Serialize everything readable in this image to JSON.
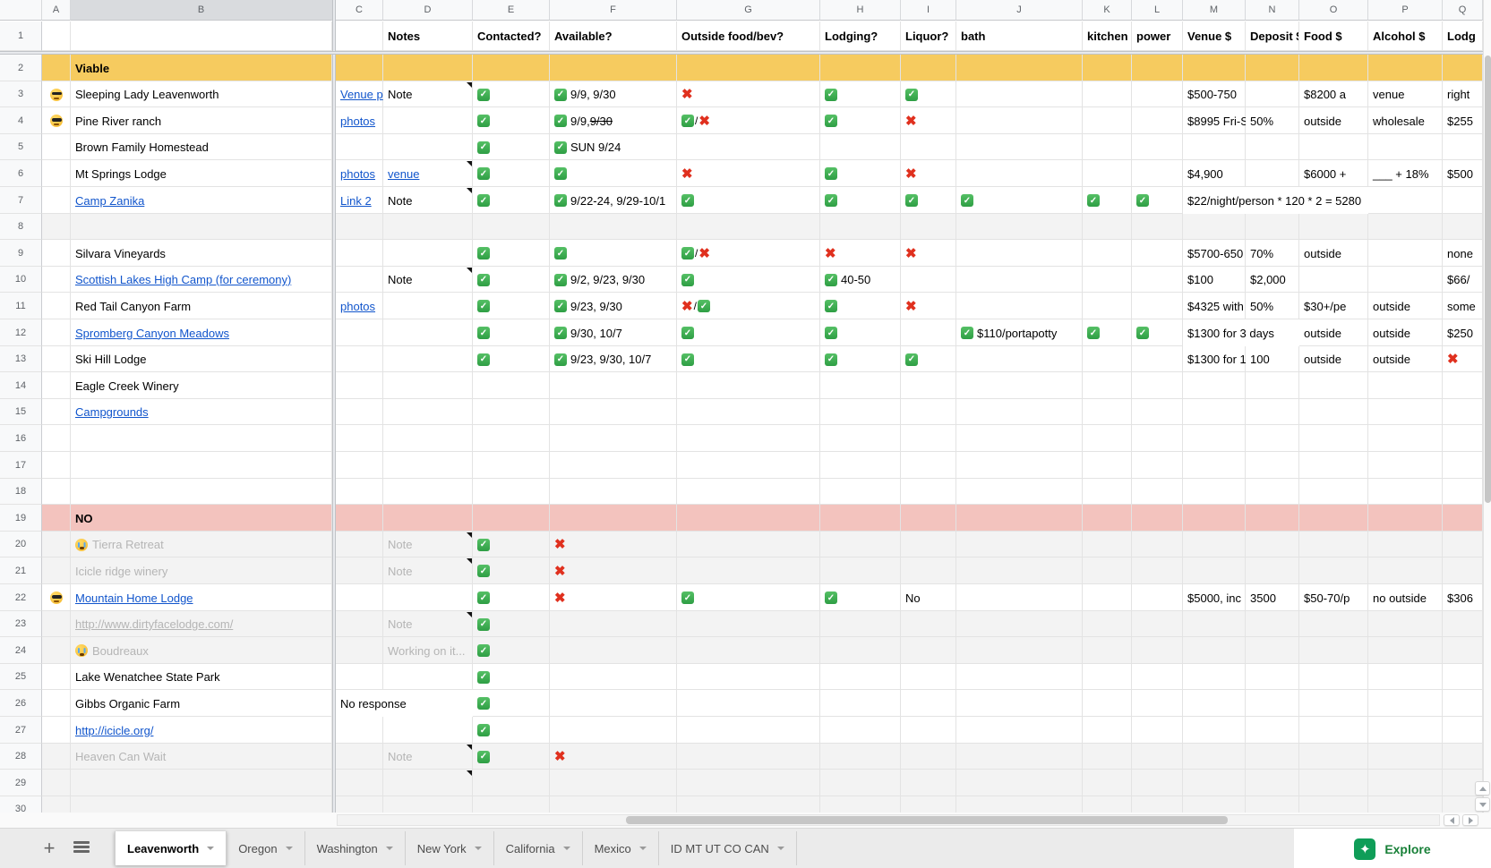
{
  "sheet": {
    "column_letters": [
      "A",
      "B",
      "C",
      "D",
      "E",
      "F",
      "G",
      "H",
      "I",
      "J",
      "K",
      "L",
      "M",
      "N",
      "O",
      "P",
      "Q"
    ],
    "active_column": "B",
    "header_row": {
      "D": "Notes",
      "E": "Contacted?",
      "F": "Available?",
      "G": "Outside food/bev?",
      "H": "Lodging?",
      "I": "Liquor?",
      "J": "bath",
      "K": "kitchen",
      "L": "power",
      "M": "Venue $",
      "N": "Deposit $",
      "O": "Food $",
      "P": "Alcohol $",
      "Q": "Lodg"
    },
    "colors": {
      "viable_band": "#F6CB5F",
      "no_band": "#F3C3BE",
      "muted_row": "#F3F3F3",
      "link": "#1155CC",
      "check_green": "#2E9E44",
      "cross_red": "#E0301E"
    },
    "rows": [
      {
        "n": 2,
        "bg": "yellow",
        "cells": [
          {
            "col": "B",
            "kind": "text",
            "text": "Viable",
            "bold": true
          }
        ]
      },
      {
        "n": 3,
        "bg": "white",
        "markers": [
          "D"
        ],
        "cells": [
          {
            "col": "A",
            "kind": "cool"
          },
          {
            "col": "B",
            "kind": "text",
            "text": "Sleeping Lady Leavenworth"
          },
          {
            "col": "C",
            "kind": "link",
            "text": "Venue p"
          },
          {
            "col": "D",
            "kind": "text",
            "text": "Note"
          },
          {
            "col": "E",
            "kind": "check"
          },
          {
            "col": "F",
            "kind": "check_text",
            "text": "9/9, 9/30"
          },
          {
            "col": "G",
            "kind": "cross"
          },
          {
            "col": "H",
            "kind": "check"
          },
          {
            "col": "I",
            "kind": "check"
          },
          {
            "col": "M",
            "kind": "text",
            "text": "$500-750"
          },
          {
            "col": "O",
            "kind": "text",
            "text": "$8200 a"
          },
          {
            "col": "P",
            "kind": "text",
            "text": "venue"
          },
          {
            "col": "Q",
            "kind": "text",
            "text": "right"
          }
        ]
      },
      {
        "n": 4,
        "bg": "white",
        "cells": [
          {
            "col": "A",
            "kind": "cool"
          },
          {
            "col": "B",
            "kind": "text",
            "text": "Pine River ranch"
          },
          {
            "col": "C",
            "kind": "link",
            "text": "photos"
          },
          {
            "col": "E",
            "kind": "check"
          },
          {
            "col": "F",
            "kind": "check_text",
            "text": "9/9, ",
            "strike": "9/30"
          },
          {
            "col": "G",
            "kind": "check_cross"
          },
          {
            "col": "H",
            "kind": "check"
          },
          {
            "col": "I",
            "kind": "cross"
          },
          {
            "col": "M",
            "kind": "text",
            "text": "$8995 Fri-S"
          },
          {
            "col": "N",
            "kind": "text",
            "text": "50%"
          },
          {
            "col": "O",
            "kind": "text",
            "text": "outside"
          },
          {
            "col": "P",
            "kind": "text",
            "text": "wholesale"
          },
          {
            "col": "Q",
            "kind": "text",
            "text": "$255"
          }
        ]
      },
      {
        "n": 5,
        "bg": "white",
        "cells": [
          {
            "col": "B",
            "kind": "text",
            "text": "Brown Family Homestead"
          },
          {
            "col": "E",
            "kind": "check"
          },
          {
            "col": "F",
            "kind": "check_text",
            "text": "SUN 9/24"
          }
        ]
      },
      {
        "n": 6,
        "bg": "white",
        "markers": [
          "D"
        ],
        "cells": [
          {
            "col": "B",
            "kind": "text",
            "text": "Mt Springs Lodge"
          },
          {
            "col": "C",
            "kind": "link",
            "text": "photos"
          },
          {
            "col": "D",
            "kind": "link",
            "text": "venue"
          },
          {
            "col": "E",
            "kind": "check"
          },
          {
            "col": "F",
            "kind": "check"
          },
          {
            "col": "G",
            "kind": "cross"
          },
          {
            "col": "H",
            "kind": "check"
          },
          {
            "col": "I",
            "kind": "cross"
          },
          {
            "col": "M",
            "kind": "text",
            "text": "$4,900"
          },
          {
            "col": "O",
            "kind": "text",
            "text": "$6000 +"
          },
          {
            "col": "P",
            "kind": "text",
            "text": "___ + 18%"
          },
          {
            "col": "Q",
            "kind": "text",
            "text": "$500"
          }
        ]
      },
      {
        "n": 7,
        "bg": "white",
        "markers": [
          "D"
        ],
        "cells": [
          {
            "col": "B",
            "kind": "link",
            "text": "Camp Zanika"
          },
          {
            "col": "C",
            "kind": "link",
            "text": "Link 2"
          },
          {
            "col": "D",
            "kind": "text",
            "text": "Note"
          },
          {
            "col": "E",
            "kind": "check"
          },
          {
            "col": "F",
            "kind": "check_text",
            "text": "9/22-24, 9/29-10/1"
          },
          {
            "col": "G",
            "kind": "check"
          },
          {
            "col": "H",
            "kind": "check"
          },
          {
            "col": "I",
            "kind": "check"
          },
          {
            "col": "J",
            "kind": "check"
          },
          {
            "col": "K",
            "kind": "check"
          },
          {
            "col": "L",
            "kind": "check"
          },
          {
            "col": "M",
            "kind": "text",
            "text": "$22/night/person * 120 * 2 = 5280",
            "span": 3
          }
        ]
      },
      {
        "n": 8,
        "bg": "gray",
        "cells": []
      },
      {
        "n": 9,
        "bg": "white",
        "cells": [
          {
            "col": "B",
            "kind": "text",
            "text": "Silvara Vineyards"
          },
          {
            "col": "E",
            "kind": "check"
          },
          {
            "col": "F",
            "kind": "check"
          },
          {
            "col": "G",
            "kind": "check_cross"
          },
          {
            "col": "H",
            "kind": "cross"
          },
          {
            "col": "I",
            "kind": "cross"
          },
          {
            "col": "M",
            "kind": "text",
            "text": "$5700-650"
          },
          {
            "col": "N",
            "kind": "text",
            "text": "70%"
          },
          {
            "col": "O",
            "kind": "text",
            "text": "outside"
          },
          {
            "col": "Q",
            "kind": "text",
            "text": "none"
          }
        ]
      },
      {
        "n": 10,
        "bg": "white",
        "markers": [
          "D"
        ],
        "cells": [
          {
            "col": "B",
            "kind": "link",
            "text": "Scottish Lakes High Camp (for ceremony)"
          },
          {
            "col": "D",
            "kind": "text",
            "text": "Note"
          },
          {
            "col": "E",
            "kind": "check"
          },
          {
            "col": "F",
            "kind": "check_text",
            "text": "9/2, 9/23, 9/30"
          },
          {
            "col": "G",
            "kind": "check"
          },
          {
            "col": "H",
            "kind": "check_text",
            "text": "40-50"
          },
          {
            "col": "M",
            "kind": "text",
            "text": "$100"
          },
          {
            "col": "N",
            "kind": "text",
            "text": "$2,000"
          },
          {
            "col": "Q",
            "kind": "text",
            "text": "$66/"
          }
        ]
      },
      {
        "n": 11,
        "bg": "white",
        "cells": [
          {
            "col": "B",
            "kind": "text",
            "text": "Red Tail Canyon Farm"
          },
          {
            "col": "C",
            "kind": "link",
            "text": "photos"
          },
          {
            "col": "E",
            "kind": "check"
          },
          {
            "col": "F",
            "kind": "check_text",
            "text": "9/23, 9/30"
          },
          {
            "col": "G",
            "kind": "cross_check"
          },
          {
            "col": "H",
            "kind": "check"
          },
          {
            "col": "I",
            "kind": "cross"
          },
          {
            "col": "M",
            "kind": "text",
            "text": "$4325 with"
          },
          {
            "col": "N",
            "kind": "text",
            "text": "50%"
          },
          {
            "col": "O",
            "kind": "text",
            "text": "$30+/pe"
          },
          {
            "col": "P",
            "kind": "text",
            "text": "outside"
          },
          {
            "col": "Q",
            "kind": "text",
            "text": "some"
          }
        ]
      },
      {
        "n": 12,
        "bg": "white",
        "cells": [
          {
            "col": "B",
            "kind": "link",
            "text": "Spromberg Canyon Meadows"
          },
          {
            "col": "E",
            "kind": "check"
          },
          {
            "col": "F",
            "kind": "check_text",
            "text": "9/30, 10/7"
          },
          {
            "col": "G",
            "kind": "check"
          },
          {
            "col": "H",
            "kind": "check"
          },
          {
            "col": "J",
            "kind": "check_text",
            "text": "$110/portapotty"
          },
          {
            "col": "K",
            "kind": "check"
          },
          {
            "col": "L",
            "kind": "check"
          },
          {
            "col": "M",
            "kind": "text",
            "text": "$1300 for 3 days",
            "span": 2
          },
          {
            "col": "O",
            "kind": "text",
            "text": "outside"
          },
          {
            "col": "P",
            "kind": "text",
            "text": "outside"
          },
          {
            "col": "Q",
            "kind": "text",
            "text": "$250"
          }
        ]
      },
      {
        "n": 13,
        "bg": "white",
        "cells": [
          {
            "col": "B",
            "kind": "text",
            "text": "Ski Hill Lodge"
          },
          {
            "col": "E",
            "kind": "check"
          },
          {
            "col": "F",
            "kind": "check_text",
            "text": "9/23, 9/30, 10/7"
          },
          {
            "col": "G",
            "kind": "check"
          },
          {
            "col": "H",
            "kind": "check"
          },
          {
            "col": "I",
            "kind": "check"
          },
          {
            "col": "M",
            "kind": "text",
            "text": "$1300 for 1"
          },
          {
            "col": "N",
            "kind": "text",
            "text": "100"
          },
          {
            "col": "O",
            "kind": "text",
            "text": "outside"
          },
          {
            "col": "P",
            "kind": "text",
            "text": "outside"
          },
          {
            "col": "Q",
            "kind": "cross"
          }
        ]
      },
      {
        "n": 14,
        "bg": "white",
        "cells": [
          {
            "col": "B",
            "kind": "text",
            "text": "Eagle Creek Winery"
          }
        ]
      },
      {
        "n": 15,
        "bg": "white",
        "cells": [
          {
            "col": "B",
            "kind": "link",
            "text": "Campgrounds"
          }
        ]
      },
      {
        "n": 16,
        "bg": "white",
        "cells": []
      },
      {
        "n": 17,
        "bg": "white",
        "cells": []
      },
      {
        "n": 18,
        "bg": "white",
        "cells": []
      },
      {
        "n": 19,
        "bg": "pink",
        "cells": [
          {
            "col": "B",
            "kind": "text",
            "text": "NO",
            "bold": true
          }
        ]
      },
      {
        "n": 20,
        "bg": "gray",
        "markers": [
          "D"
        ],
        "cells": [
          {
            "col": "B",
            "kind": "sob_text",
            "text": "Tierra Retreat",
            "gray": true
          },
          {
            "col": "D",
            "kind": "text",
            "text": "Note",
            "gray": true
          },
          {
            "col": "E",
            "kind": "check"
          },
          {
            "col": "F",
            "kind": "cross"
          }
        ]
      },
      {
        "n": 21,
        "bg": "gray",
        "markers": [
          "D"
        ],
        "cells": [
          {
            "col": "B",
            "kind": "text",
            "text": "Icicle ridge winery",
            "gray": true
          },
          {
            "col": "D",
            "kind": "text",
            "text": "Note",
            "gray": true
          },
          {
            "col": "E",
            "kind": "check"
          },
          {
            "col": "F",
            "kind": "cross"
          }
        ]
      },
      {
        "n": 22,
        "bg": "white",
        "cells": [
          {
            "col": "A",
            "kind": "cool"
          },
          {
            "col": "B",
            "kind": "link",
            "text": "Mountain Home Lodge"
          },
          {
            "col": "E",
            "kind": "check"
          },
          {
            "col": "F",
            "kind": "cross"
          },
          {
            "col": "G",
            "kind": "check"
          },
          {
            "col": "H",
            "kind": "check"
          },
          {
            "col": "I",
            "kind": "text",
            "text": "No"
          },
          {
            "col": "M",
            "kind": "text",
            "text": "$5000, inc"
          },
          {
            "col": "N",
            "kind": "text",
            "text": "3500"
          },
          {
            "col": "O",
            "kind": "text",
            "text": "$50-70/p"
          },
          {
            "col": "P",
            "kind": "text",
            "text": "no outside"
          },
          {
            "col": "Q",
            "kind": "text",
            "text": "$306"
          }
        ]
      },
      {
        "n": 23,
        "bg": "gray",
        "markers": [
          "D"
        ],
        "cells": [
          {
            "col": "B",
            "kind": "graylink",
            "text": "http://www.dirtyfacelodge.com/"
          },
          {
            "col": "D",
            "kind": "text",
            "text": "Note",
            "gray": true
          },
          {
            "col": "E",
            "kind": "check"
          }
        ]
      },
      {
        "n": 24,
        "bg": "gray",
        "cells": [
          {
            "col": "B",
            "kind": "sob_text",
            "text": "Boudreaux",
            "gray": true
          },
          {
            "col": "D",
            "kind": "text",
            "text": "Working on it...",
            "gray": true
          },
          {
            "col": "E",
            "kind": "check"
          }
        ]
      },
      {
        "n": 25,
        "bg": "white",
        "cells": [
          {
            "col": "B",
            "kind": "text",
            "text": "Lake Wenatchee State Park"
          },
          {
            "col": "E",
            "kind": "check"
          }
        ]
      },
      {
        "n": 26,
        "bg": "white",
        "cells": [
          {
            "col": "B",
            "kind": "text",
            "text": "Gibbs Organic Farm"
          },
          {
            "col": "C",
            "kind": "text",
            "text": "No response",
            "span": 2
          },
          {
            "col": "E",
            "kind": "check"
          }
        ]
      },
      {
        "n": 27,
        "bg": "white",
        "cells": [
          {
            "col": "B",
            "kind": "link",
            "text": "http://icicle.org/"
          },
          {
            "col": "E",
            "kind": "check"
          }
        ]
      },
      {
        "n": 28,
        "bg": "gray",
        "markers": [
          "D"
        ],
        "cells": [
          {
            "col": "B",
            "kind": "text",
            "text": "Heaven Can Wait",
            "gray": true
          },
          {
            "col": "D",
            "kind": "text",
            "text": "Note",
            "gray": true
          },
          {
            "col": "E",
            "kind": "check"
          },
          {
            "col": "F",
            "kind": "cross"
          }
        ]
      },
      {
        "n": 29,
        "bg": "gray",
        "markers": [
          "D"
        ],
        "cells": []
      },
      {
        "n": 30,
        "bg": "gray",
        "cells": []
      }
    ]
  },
  "tabbar": {
    "tabs": [
      {
        "label": "Leavenworth",
        "active": true
      },
      {
        "label": "Oregon",
        "active": false
      },
      {
        "label": "Washington",
        "active": false
      },
      {
        "label": "New York",
        "active": false
      },
      {
        "label": "California",
        "active": false
      },
      {
        "label": "Mexico",
        "active": false
      },
      {
        "label": "ID MT UT CO CAN",
        "active": false
      }
    ],
    "explore_label": "Explore",
    "explore_icon": "✦"
  }
}
